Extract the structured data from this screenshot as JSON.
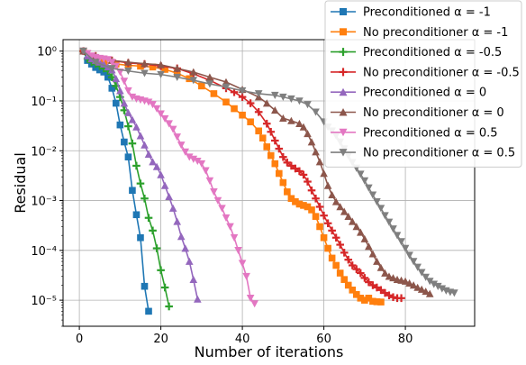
{
  "chart_data": {
    "type": "line",
    "xlabel": "Number of iterations",
    "ylabel": "Residual",
    "x_scale": "linear",
    "y_scale": "log",
    "xlim": [
      -4,
      97
    ],
    "ylim": [
      3e-06,
      1.7
    ],
    "x_ticks": [
      0,
      20,
      40,
      60,
      80
    ],
    "x_tick_labels": [
      "0",
      "20",
      "40",
      "60",
      "80"
    ],
    "y_ticks": [
      1e-05,
      0.0001,
      0.001,
      0.01,
      0.1,
      1
    ],
    "y_tick_labels": [
      "10⁻⁵",
      "10⁻⁴",
      "10⁻³",
      "10⁻²",
      "10⁻¹",
      "10⁰"
    ],
    "grid": true,
    "legend_position": "top-right",
    "series": [
      {
        "name": "Preconditioned α = -1",
        "color": "#1f77b4",
        "marker": "square",
        "x": [
          1,
          2,
          3,
          4,
          5,
          6,
          7,
          8,
          9,
          10,
          11,
          12,
          13,
          14,
          15,
          16,
          17
        ],
        "y": [
          1.0,
          0.65,
          0.55,
          0.47,
          0.42,
          0.38,
          0.3,
          0.18,
          0.09,
          0.033,
          0.015,
          0.0075,
          0.0016,
          0.00052,
          0.00018,
          1.9e-05,
          6e-06
        ]
      },
      {
        "name": "No preconditioner α = -1",
        "color": "#ff7f0e",
        "marker": "square",
        "x": [
          1,
          3,
          6,
          9,
          12,
          15,
          18,
          21,
          24,
          27,
          30,
          33,
          36,
          38,
          40,
          42,
          44,
          45,
          46,
          47,
          48,
          49,
          50,
          51,
          52,
          53,
          54,
          55,
          56,
          57,
          58,
          59,
          60,
          61,
          62,
          63,
          64,
          65,
          66,
          67,
          68,
          69,
          70,
          71,
          72,
          73,
          74
        ],
        "y": [
          1.0,
          0.75,
          0.6,
          0.55,
          0.52,
          0.5,
          0.48,
          0.43,
          0.36,
          0.28,
          0.2,
          0.14,
          0.095,
          0.07,
          0.052,
          0.038,
          0.025,
          0.018,
          0.012,
          0.008,
          0.0055,
          0.0035,
          0.0023,
          0.0015,
          0.0011,
          0.00095,
          0.00085,
          0.0008,
          0.00075,
          0.00065,
          0.00048,
          0.0003,
          0.00018,
          0.00011,
          7e-05,
          5e-05,
          3.5e-05,
          2.6e-05,
          2e-05,
          1.6e-05,
          1.3e-05,
          1.1e-05,
          1e-05,
          1.1e-05,
          9.5e-06,
          9.3e-06,
          9.2e-06
        ]
      },
      {
        "name": "Preconditioned α = -0.5",
        "color": "#2ca02c",
        "marker": "plus",
        "x": [
          1,
          2,
          3,
          4,
          5,
          6,
          7,
          8,
          9,
          10,
          11,
          12,
          13,
          14,
          15,
          16,
          17,
          18,
          19,
          20,
          21,
          22
        ],
        "y": [
          1.0,
          0.7,
          0.6,
          0.55,
          0.5,
          0.45,
          0.4,
          0.3,
          0.2,
          0.12,
          0.065,
          0.031,
          0.014,
          0.005,
          0.0022,
          0.0011,
          0.00045,
          0.00025,
          0.00011,
          4e-05,
          1.8e-05,
          7.5e-06
        ]
      },
      {
        "name": "No preconditioner α = -0.5",
        "color": "#d62728",
        "marker": "plus",
        "x": [
          1,
          4,
          8,
          12,
          16,
          20,
          24,
          28,
          32,
          36,
          38,
          40,
          42,
          44,
          46,
          47,
          48,
          49,
          50,
          51,
          52,
          53,
          54,
          55,
          56,
          57,
          58,
          59,
          60,
          61,
          62,
          63,
          64,
          65,
          66,
          67,
          68,
          69,
          70,
          71,
          72,
          73,
          74,
          75,
          76,
          77,
          78,
          79
        ],
        "y": [
          1.0,
          0.8,
          0.65,
          0.58,
          0.55,
          0.5,
          0.45,
          0.35,
          0.26,
          0.18,
          0.15,
          0.12,
          0.09,
          0.06,
          0.035,
          0.024,
          0.016,
          0.011,
          0.0075,
          0.0058,
          0.005,
          0.0044,
          0.0039,
          0.0033,
          0.0024,
          0.0016,
          0.0011,
          0.00075,
          0.0005,
          0.00035,
          0.00025,
          0.00018,
          0.00013,
          9e-05,
          6.5e-05,
          5e-05,
          4.2e-05,
          3.5e-05,
          2.8e-05,
          2.3e-05,
          2e-05,
          1.8e-05,
          1.6e-05,
          1.4e-05,
          1.25e-05,
          1.15e-05,
          1.1e-05,
          1.1e-05
        ]
      },
      {
        "name": "Preconditioned α = 0",
        "color": "#9467bd",
        "marker": "triangle-up",
        "x": [
          1,
          2,
          3,
          4,
          5,
          6,
          7,
          8,
          9,
          10,
          11,
          12,
          13,
          14,
          15,
          16,
          17,
          18,
          19,
          20,
          21,
          22,
          23,
          24,
          25,
          26,
          27,
          28,
          29
        ],
        "y": [
          1.0,
          0.8,
          0.7,
          0.65,
          0.6,
          0.55,
          0.48,
          0.42,
          0.28,
          0.16,
          0.09,
          0.058,
          0.042,
          0.03,
          0.02,
          0.013,
          0.0085,
          0.006,
          0.0048,
          0.0033,
          0.002,
          0.0012,
          0.0007,
          0.00038,
          0.00019,
          0.00011,
          6e-05,
          2.6e-05,
          1.05e-05
        ]
      },
      {
        "name": "No preconditioner α = 0",
        "color": "#8c564b",
        "marker": "triangle-up",
        "x": [
          1,
          4,
          8,
          12,
          16,
          20,
          24,
          28,
          32,
          36,
          40,
          44,
          46,
          48,
          50,
          52,
          54,
          55,
          56,
          57,
          58,
          59,
          60,
          61,
          62,
          63,
          64,
          65,
          66,
          67,
          68,
          69,
          70,
          71,
          72,
          73,
          74,
          75,
          76,
          77,
          78,
          79,
          80,
          81,
          82,
          83,
          84,
          85,
          86
        ],
        "y": [
          1.0,
          0.8,
          0.65,
          0.6,
          0.56,
          0.53,
          0.45,
          0.38,
          0.3,
          0.24,
          0.17,
          0.12,
          0.09,
          0.065,
          0.045,
          0.04,
          0.035,
          0.03,
          0.022,
          0.015,
          0.0095,
          0.006,
          0.0035,
          0.002,
          0.0013,
          0.00095,
          0.00075,
          0.0006,
          0.00048,
          0.00038,
          0.0003,
          0.00023,
          0.00017,
          0.00012,
          8.5e-05,
          6e-05,
          4.5e-05,
          3.5e-05,
          3e-05,
          2.8e-05,
          2.6e-05,
          2.5e-05,
          2.4e-05,
          2.2e-05,
          2e-05,
          1.8e-05,
          1.65e-05,
          1.5e-05,
          1.35e-05
        ]
      },
      {
        "name": "Preconditioned α = 0.5",
        "color": "#e377c2",
        "marker": "triangle-down",
        "x": [
          1,
          2,
          3,
          4,
          5,
          6,
          7,
          8,
          9,
          10,
          11,
          12,
          13,
          14,
          15,
          16,
          17,
          18,
          19,
          20,
          21,
          22,
          23,
          24,
          25,
          26,
          27,
          28,
          29,
          30,
          31,
          32,
          33,
          34,
          35,
          36,
          37,
          38,
          39,
          40,
          41,
          42,
          43
        ],
        "y": [
          1.0,
          0.9,
          0.8,
          0.75,
          0.72,
          0.7,
          0.68,
          0.6,
          0.5,
          0.38,
          0.25,
          0.16,
          0.12,
          0.11,
          0.105,
          0.1,
          0.095,
          0.085,
          0.07,
          0.055,
          0.044,
          0.035,
          0.027,
          0.019,
          0.013,
          0.0095,
          0.0075,
          0.0068,
          0.0062,
          0.0055,
          0.004,
          0.0025,
          0.0015,
          0.001,
          0.0007,
          0.00045,
          0.0003,
          0.00018,
          0.0001,
          5.5e-05,
          3e-05,
          1.1e-05,
          8.5e-06
        ]
      },
      {
        "name": "No preconditioner α = 0.5",
        "color": "#7f7f7f",
        "marker": "triangle-down",
        "x": [
          1,
          4,
          8,
          12,
          16,
          20,
          24,
          28,
          32,
          36,
          40,
          44,
          48,
          50,
          52,
          54,
          56,
          58,
          60,
          61,
          62,
          63,
          64,
          65,
          66,
          67,
          68,
          69,
          70,
          71,
          72,
          73,
          74,
          75,
          76,
          77,
          78,
          79,
          80,
          81,
          82,
          83,
          84,
          85,
          86,
          87,
          88,
          89,
          90,
          91,
          92
        ],
        "y": [
          1.0,
          0.6,
          0.45,
          0.4,
          0.36,
          0.34,
          0.3,
          0.26,
          0.22,
          0.19,
          0.16,
          0.14,
          0.13,
          0.12,
          0.11,
          0.1,
          0.085,
          0.06,
          0.038,
          0.03,
          0.025,
          0.02,
          0.015,
          0.011,
          0.008,
          0.0058,
          0.0045,
          0.0034,
          0.0025,
          0.0018,
          0.0013,
          0.00095,
          0.0007,
          0.0005,
          0.00037,
          0.00027,
          0.0002,
          0.00015,
          0.00011,
          8e-05,
          6e-05,
          4.6e-05,
          3.6e-05,
          2.9e-05,
          2.4e-05,
          2.1e-05,
          1.9e-05,
          1.7e-05,
          1.55e-05,
          1.45e-05,
          1.4e-05
        ]
      }
    ]
  }
}
